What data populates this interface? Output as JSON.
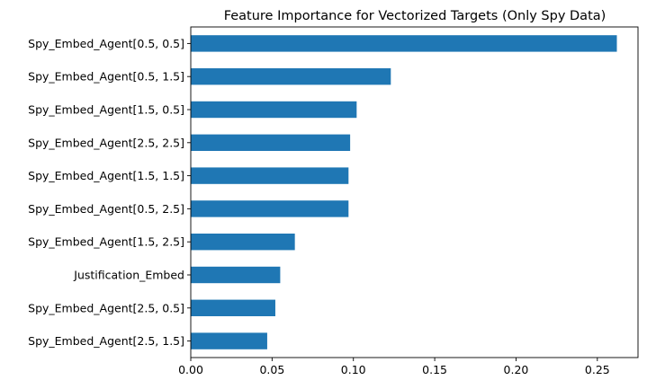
{
  "chart_data": {
    "type": "bar",
    "orientation": "horizontal",
    "title": "Feature Importance for Vectorized Targets (Only Spy Data)",
    "xlabel": "",
    "ylabel": "",
    "xlim": [
      0,
      0.275
    ],
    "xticks": [
      0.0,
      0.05,
      0.1,
      0.15,
      0.2,
      0.25
    ],
    "xtick_labels": [
      "0.00",
      "0.05",
      "0.10",
      "0.15",
      "0.20",
      "0.25"
    ],
    "grid": false,
    "legend": "none",
    "bar_color": "#1f77b4",
    "categories": [
      "Spy_Embed_Agent[0.5, 0.5]",
      "Spy_Embed_Agent[0.5, 1.5]",
      "Spy_Embed_Agent[1.5, 0.5]",
      "Spy_Embed_Agent[2.5, 2.5]",
      "Spy_Embed_Agent[1.5, 1.5]",
      "Spy_Embed_Agent[0.5, 2.5]",
      "Spy_Embed_Agent[1.5, 2.5]",
      "Justification_Embed",
      "Spy_Embed_Agent[2.5, 0.5]",
      "Spy_Embed_Agent[2.5, 1.5]"
    ],
    "values": [
      0.262,
      0.123,
      0.102,
      0.098,
      0.097,
      0.097,
      0.064,
      0.055,
      0.052,
      0.047
    ]
  }
}
